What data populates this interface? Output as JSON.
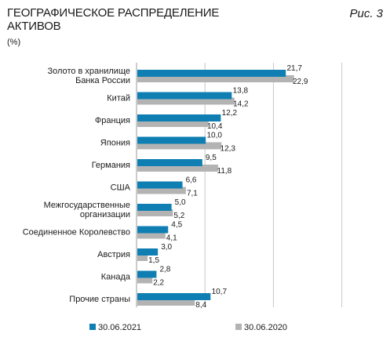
{
  "header": {
    "title_line1": "ГЕОГРАФИЧЕСКОЕ РАСПРЕДЕЛЕНИЕ",
    "title_line2": "АКТИВОВ",
    "unit": "(%)",
    "figure_label": "Рис. 3"
  },
  "colors": {
    "series_2021": "#0f7fb3",
    "series_2020": "#b3b3b3",
    "grid": "#c8c8c8"
  },
  "chart_data": {
    "type": "bar",
    "orientation": "horizontal",
    "title": "ГЕОГРАФИЧЕСКОЕ РАСПРЕДЕЛЕНИЕ АКТИВОВ",
    "unit": "(%)",
    "categories": [
      [
        "Золото в хранилище",
        "Банка России"
      ],
      [
        "Китай"
      ],
      [
        "Франция"
      ],
      [
        "Япония"
      ],
      [
        "Германия"
      ],
      [
        "США"
      ],
      [
        "Межгосударственные",
        "организации"
      ],
      [
        "Соединенное Королевство"
      ],
      [
        "Австрия"
      ],
      [
        "Канада"
      ],
      [
        "Прочие страны"
      ]
    ],
    "series": [
      {
        "name": "30.06.2021",
        "values": [
          21.7,
          13.8,
          12.2,
          10.0,
          9.5,
          6.6,
          5.0,
          4.5,
          3.0,
          2.8,
          10.7
        ],
        "labels": [
          "21,7",
          "13,8",
          "12,2",
          "10,0",
          "9,5",
          "6,6",
          "5,0",
          "4,5",
          "3,0",
          "2,8",
          "10,7"
        ]
      },
      {
        "name": "30.06.2020",
        "values": [
          22.9,
          14.2,
          10.4,
          12.3,
          11.8,
          7.1,
          5.2,
          4.1,
          1.5,
          2.2,
          8.4
        ],
        "labels": [
          "22,9",
          "14,2",
          "10,4",
          "12,3",
          "11,8",
          "7,1",
          "5,2",
          "4,1",
          "1,5",
          "2,2",
          "8,4"
        ]
      }
    ],
    "xlim": [
      0,
      30
    ],
    "grid": true,
    "legend_position": "bottom"
  }
}
